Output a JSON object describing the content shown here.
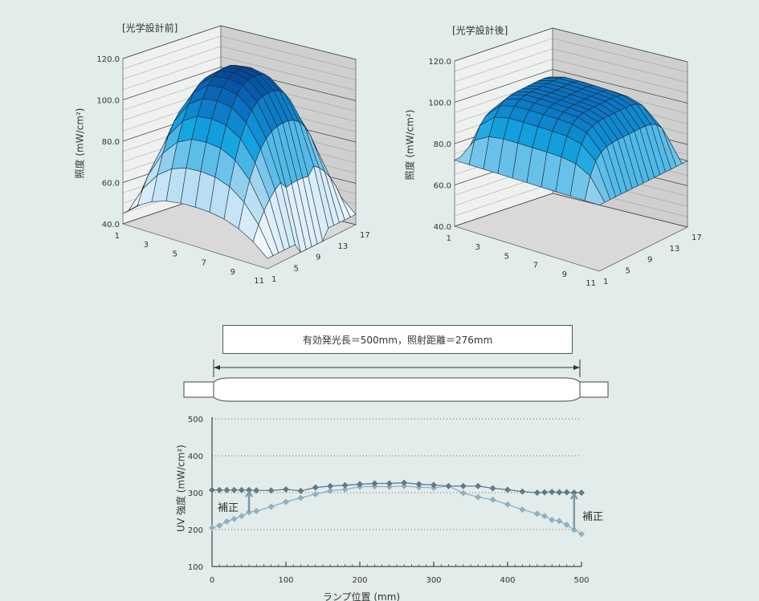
{
  "chart_data": [
    {
      "type": "surface3d",
      "title": "[光学設計前]",
      "zlabel": "照度 (mW/cm²)",
      "zlim": [
        40,
        120
      ],
      "z_ticks": [
        "120.0",
        "100.0",
        "80.0",
        "60.0",
        "40.0"
      ],
      "x_ticks": [
        "1",
        "3",
        "5",
        "7",
        "9",
        "11"
      ],
      "y_ticks": [
        "1",
        "5",
        "9",
        "13",
        "17"
      ],
      "shape": "dome peaking near 115 at center, falling to ~45-55 at corners"
    },
    {
      "type": "surface3d",
      "title": "[光学設計後]",
      "zlabel": "照度 (mW/cm²)",
      "zlim": [
        40,
        120
      ],
      "z_ticks": [
        "120.0",
        "100.0",
        "80.0",
        "60.0",
        "40.0"
      ],
      "x_ticks": [
        "1",
        "3",
        "5",
        "7",
        "9",
        "11"
      ],
      "y_ticks": [
        "1",
        "5",
        "9",
        "13",
        "17"
      ],
      "shape": "flat plateau near 100-105, edges ~75-80"
    },
    {
      "type": "line",
      "xlabel": "ランプ位置 (mm)",
      "ylabel": "UV 強度 (mW/cm²)",
      "xlim": [
        0,
        500
      ],
      "ylim": [
        100,
        500
      ],
      "x_ticks": [
        "0",
        "100",
        "200",
        "300",
        "400",
        "500"
      ],
      "y_ticks": [
        "500",
        "400",
        "300",
        "200",
        "100"
      ],
      "grid": "horizontal dotted",
      "x": [
        0,
        10,
        20,
        30,
        40,
        50,
        60,
        80,
        100,
        120,
        140,
        160,
        180,
        200,
        220,
        240,
        260,
        280,
        300,
        320,
        340,
        360,
        380,
        400,
        420,
        440,
        450,
        460,
        470,
        480,
        490,
        500
      ],
      "series": [
        {
          "color": "#5f7a86",
          "values": [
            307,
            307,
            307,
            307,
            307,
            307,
            306,
            306,
            309,
            305,
            314,
            318,
            320,
            323,
            325,
            325,
            327,
            323,
            321,
            318,
            318,
            318,
            312,
            308,
            303,
            300,
            301,
            302,
            301,
            301,
            300,
            300
          ]
        },
        {
          "color": "#8fb0bf",
          "values": [
            205,
            211,
            222,
            229,
            237,
            247,
            250,
            262,
            275,
            286,
            296,
            305,
            309,
            316,
            317,
            316,
            318,
            315,
            313,
            318,
            299,
            288,
            281,
            268,
            254,
            243,
            237,
            226,
            223,
            213,
            199,
            188
          ]
        }
      ],
      "annotations": [
        "補正",
        "補正"
      ]
    }
  ],
  "lamp": {
    "caption": "有効発光長＝500mm，照射距離＝276mm"
  }
}
